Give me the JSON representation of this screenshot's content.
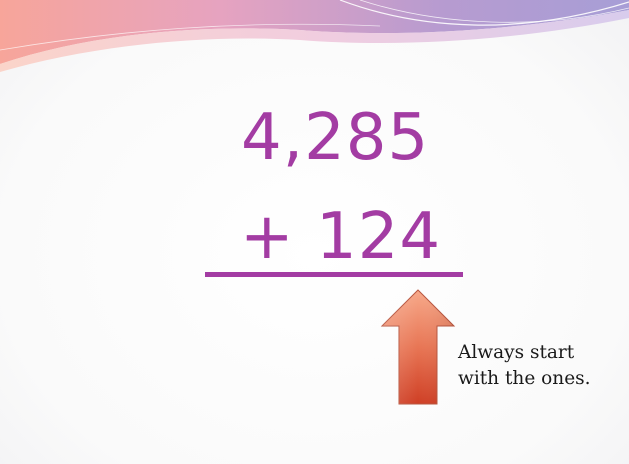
{
  "slide": {
    "top_number": "4,285",
    "bottom_number": "+ 124",
    "note_lines": [
      "Always start",
      "with the ones."
    ]
  },
  "colors": {
    "number_color": "#a33ca3",
    "rule_color": "#a33ca3",
    "arrow_top": "#f5a07e",
    "arrow_bottom": "#d2452a",
    "banner_pink": "#f4a3a3",
    "banner_purple": "#b59acb"
  },
  "icons": {
    "arrow": "up-arrow-icon"
  }
}
